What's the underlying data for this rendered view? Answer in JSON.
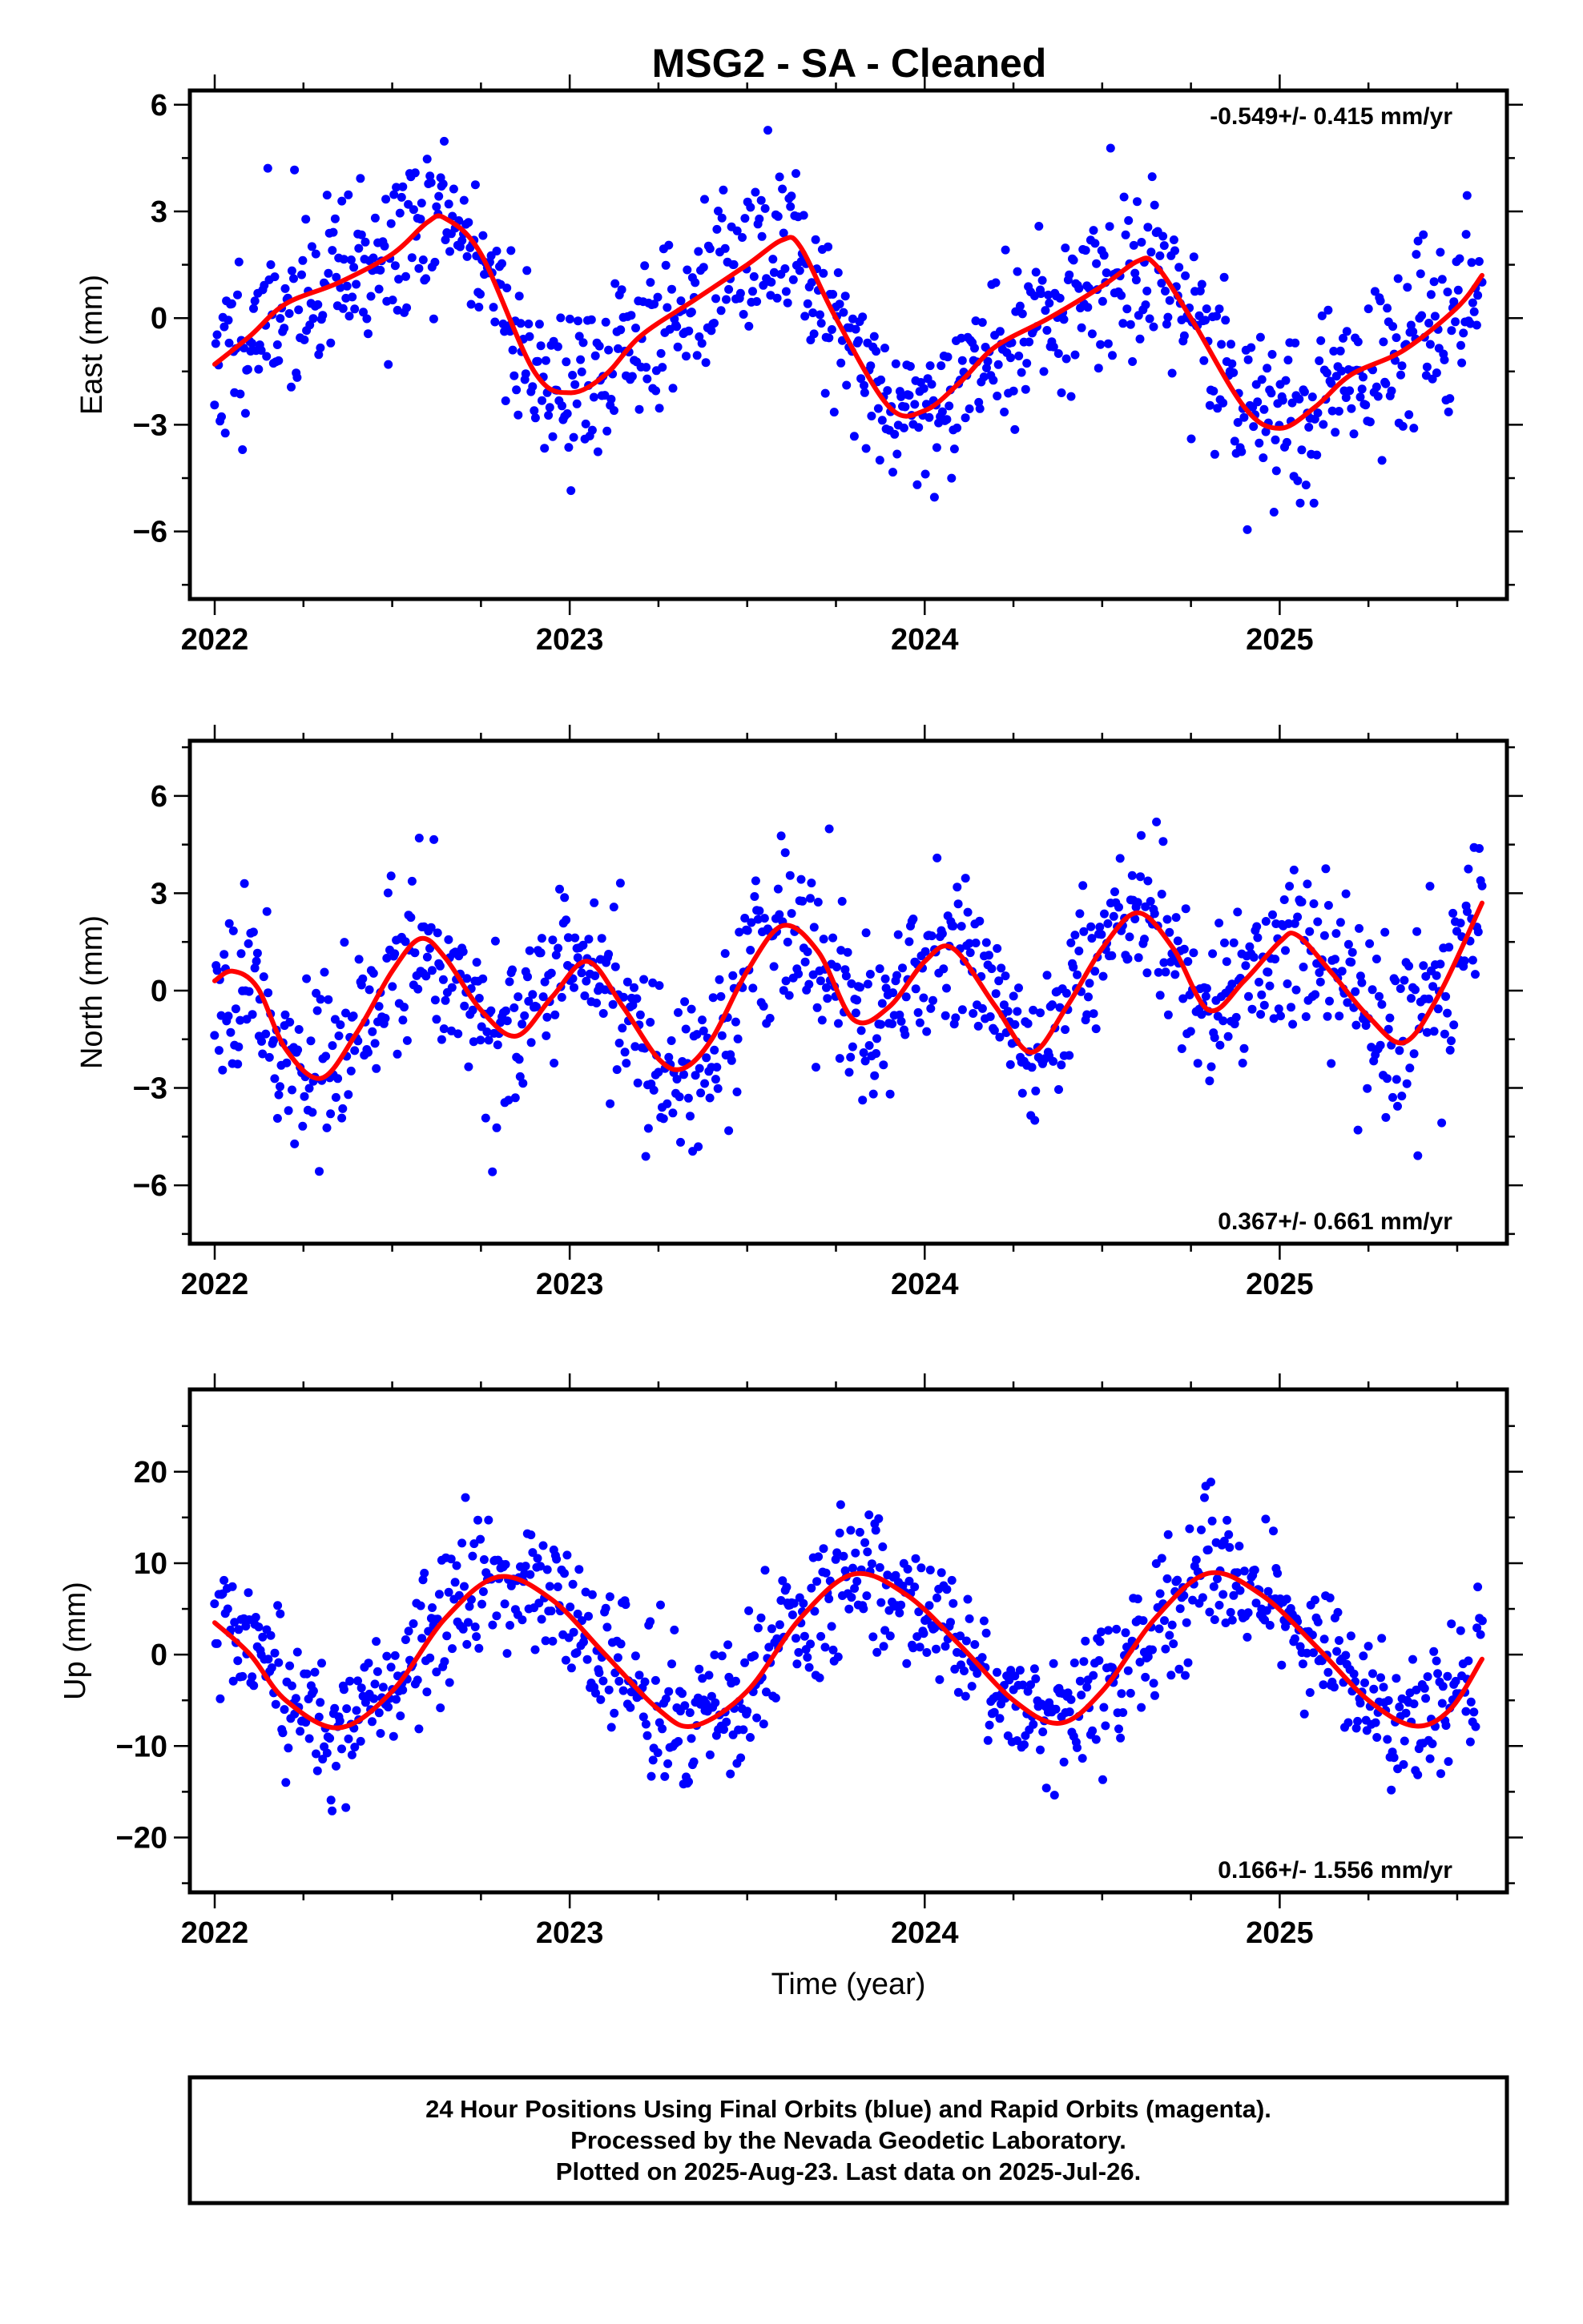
{
  "title": "MSG2  - SA - Cleaned",
  "footer": {
    "lines": [
      "24 Hour Positions Using Final Orbits (blue) and Rapid Orbits (magenta).",
      "Processed by the Nevada Geodetic Laboratory.",
      "Plotted on 2025-Aug-23. Last data on 2025-Jul-26."
    ]
  },
  "colors": {
    "points": "#0000ff",
    "fit": "#ff0000",
    "frame": "#000000"
  },
  "chart_data": [
    {
      "type": "scatter",
      "ylabel": "East (mm)",
      "xlabel": "",
      "rate_label": "-0.549+/- 0.415 mm/yr",
      "rate_placement": "top-right",
      "xlim": [
        2021.93,
        2025.64
      ],
      "ylim": [
        -7.9,
        6.4
      ],
      "x_ticks": [
        2022,
        2023,
        2024,
        2025
      ],
      "x_tick_labels": [
        "2022",
        "2023",
        "2024",
        "2025"
      ],
      "y_ticks": [
        6,
        3,
        0,
        -3,
        -6
      ],
      "y_tick_labels": [
        "6",
        "3",
        "0",
        "−3",
        "−6"
      ],
      "grid": false,
      "data_range": [
        2022.0,
        2025.57
      ],
      "model": {
        "name": "fit",
        "points": [
          [
            2022.0,
            -1.3
          ],
          [
            2022.1,
            -0.5
          ],
          [
            2022.2,
            0.4
          ],
          [
            2022.35,
            1.0
          ],
          [
            2022.5,
            1.8
          ],
          [
            2022.6,
            2.7
          ],
          [
            2022.65,
            2.8
          ],
          [
            2022.75,
            1.8
          ],
          [
            2022.9,
            -1.5
          ],
          [
            2023.0,
            -2.1
          ],
          [
            2023.1,
            -1.6
          ],
          [
            2023.2,
            -0.5
          ],
          [
            2023.35,
            0.5
          ],
          [
            2023.5,
            1.5
          ],
          [
            2023.6,
            2.2
          ],
          [
            2023.65,
            2.0
          ],
          [
            2023.75,
            0.0
          ],
          [
            2023.9,
            -2.5
          ],
          [
            2024.0,
            -2.6
          ],
          [
            2024.1,
            -1.8
          ],
          [
            2024.2,
            -0.8
          ],
          [
            2024.35,
            0.0
          ],
          [
            2024.5,
            0.9
          ],
          [
            2024.6,
            1.6
          ],
          [
            2024.65,
            1.5
          ],
          [
            2024.75,
            0.0
          ],
          [
            2024.9,
            -2.5
          ],
          [
            2025.0,
            -3.1
          ],
          [
            2025.1,
            -2.5
          ],
          [
            2025.2,
            -1.6
          ],
          [
            2025.35,
            -0.9
          ],
          [
            2025.5,
            0.3
          ],
          [
            2025.57,
            1.2
          ]
        ]
      },
      "scatter": {
        "series": "daily positions",
        "count": 950,
        "spread_mm": 1.2,
        "seed": 11
      }
    },
    {
      "type": "scatter",
      "ylabel": "North (mm)",
      "xlabel": "",
      "rate_label": "0.367+/- 0.661 mm/yr",
      "rate_placement": "bottom-right",
      "xlim": [
        2021.93,
        2025.64
      ],
      "ylim": [
        -7.8,
        7.7
      ],
      "x_ticks": [
        2022,
        2023,
        2024,
        2025
      ],
      "x_tick_labels": [
        "2022",
        "2023",
        "2024",
        "2025"
      ],
      "y_ticks": [
        6,
        3,
        0,
        -3,
        -6
      ],
      "y_tick_labels": [
        "6",
        "3",
        "0",
        "−3",
        "−6"
      ],
      "grid": false,
      "data_range": [
        2022.0,
        2025.57
      ],
      "model": {
        "name": "fit",
        "points": [
          [
            2022.0,
            0.3
          ],
          [
            2022.05,
            0.6
          ],
          [
            2022.12,
            0.1
          ],
          [
            2022.2,
            -1.8
          ],
          [
            2022.3,
            -2.7
          ],
          [
            2022.4,
            -1.3
          ],
          [
            2022.5,
            0.6
          ],
          [
            2022.58,
            1.6
          ],
          [
            2022.65,
            1.0
          ],
          [
            2022.75,
            -0.6
          ],
          [
            2022.85,
            -1.4
          ],
          [
            2022.95,
            -0.2
          ],
          [
            2023.05,
            0.9
          ],
          [
            2023.15,
            -0.5
          ],
          [
            2023.25,
            -2.1
          ],
          [
            2023.32,
            -2.4
          ],
          [
            2023.4,
            -1.5
          ],
          [
            2023.5,
            0.6
          ],
          [
            2023.6,
            2.0
          ],
          [
            2023.7,
            1.2
          ],
          [
            2023.8,
            -0.9
          ],
          [
            2023.9,
            -0.5
          ],
          [
            2024.0,
            0.9
          ],
          [
            2024.08,
            1.3
          ],
          [
            2024.2,
            -0.5
          ],
          [
            2024.3,
            -1.9
          ],
          [
            2024.4,
            -0.5
          ],
          [
            2024.5,
            1.3
          ],
          [
            2024.6,
            2.4
          ],
          [
            2024.7,
            1.3
          ],
          [
            2024.8,
            -0.6
          ],
          [
            2024.9,
            0.3
          ],
          [
            2025.0,
            1.5
          ],
          [
            2025.05,
            1.7
          ],
          [
            2025.15,
            0.5
          ],
          [
            2025.25,
            -0.8
          ],
          [
            2025.35,
            -1.6
          ],
          [
            2025.45,
            -0.1
          ],
          [
            2025.57,
            2.7
          ]
        ]
      },
      "scatter": {
        "series": "daily positions",
        "count": 950,
        "spread_mm": 1.3,
        "seed": 23
      }
    },
    {
      "type": "scatter",
      "ylabel": "Up (mm)",
      "xlabel": "Time (year)",
      "rate_label": "0.166+/- 1.556 mm/yr",
      "rate_placement": "bottom-right",
      "xlim": [
        2021.93,
        2025.64
      ],
      "ylim": [
        -26,
        29
      ],
      "x_ticks": [
        2022,
        2023,
        2024,
        2025
      ],
      "x_tick_labels": [
        "2022",
        "2023",
        "2024",
        "2025"
      ],
      "y_ticks": [
        20,
        10,
        0,
        -10,
        -20
      ],
      "y_tick_labels": [
        "20",
        "10",
        "0",
        "−10",
        "−20"
      ],
      "grid": false,
      "data_range": [
        2022.0,
        2025.57
      ],
      "model": {
        "name": "fit",
        "points": [
          [
            2022.0,
            3.5
          ],
          [
            2022.1,
            0.0
          ],
          [
            2022.2,
            -5.0
          ],
          [
            2022.35,
            -8.0
          ],
          [
            2022.5,
            -4.0
          ],
          [
            2022.65,
            4.0
          ],
          [
            2022.8,
            8.5
          ],
          [
            2022.95,
            6.0
          ],
          [
            2023.1,
            0.0
          ],
          [
            2023.25,
            -6.0
          ],
          [
            2023.35,
            -7.8
          ],
          [
            2023.5,
            -4.0
          ],
          [
            2023.65,
            4.0
          ],
          [
            2023.8,
            8.8
          ],
          [
            2023.95,
            6.5
          ],
          [
            2024.1,
            1.0
          ],
          [
            2024.25,
            -5.0
          ],
          [
            2024.38,
            -7.5
          ],
          [
            2024.5,
            -4.0
          ],
          [
            2024.65,
            4.0
          ],
          [
            2024.8,
            8.9
          ],
          [
            2024.95,
            6.5
          ],
          [
            2025.1,
            1.0
          ],
          [
            2025.25,
            -5.0
          ],
          [
            2025.38,
            -7.8
          ],
          [
            2025.48,
            -6.0
          ],
          [
            2025.57,
            -0.5
          ]
        ]
      },
      "scatter": {
        "series": "daily positions",
        "count": 950,
        "spread_mm": 3.8,
        "seed": 37
      }
    }
  ]
}
